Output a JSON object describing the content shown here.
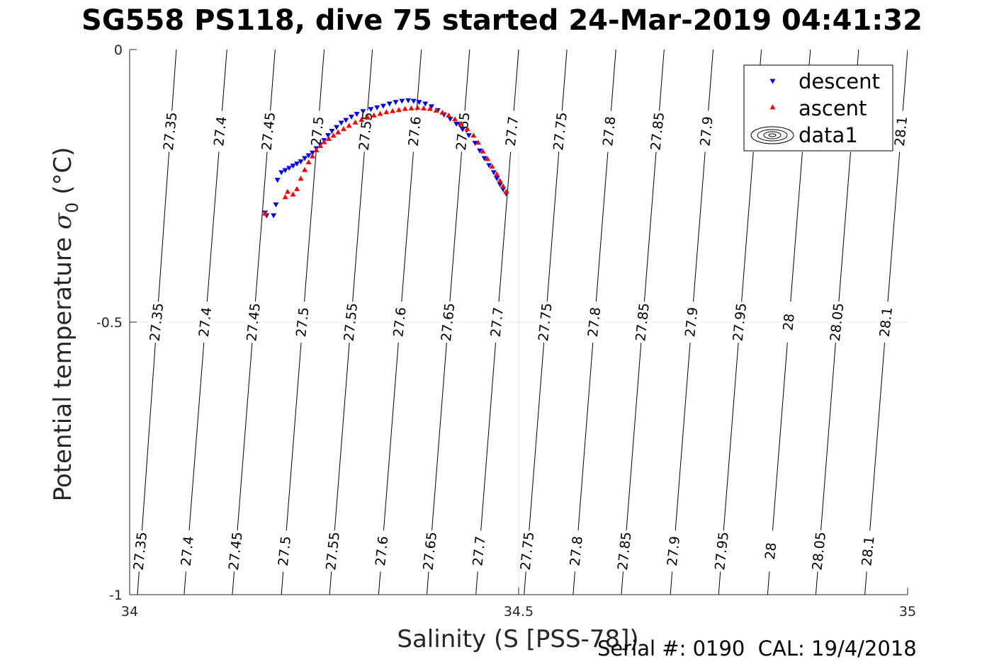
{
  "title": "SG558 PS118, dive 75 started 24-Mar-2019 04:41:32",
  "footer": "Serial #: 0190  CAL: 19/4/2018",
  "chart_data": {
    "type": "scatter",
    "title": "SG558 PS118, dive 75 started 24-Mar-2019 04:41:32",
    "xlabel": "Salinity (S [PSS-78])",
    "ylabel_main": "Potential temperature ",
    "ylabel_sigma": "σ",
    "ylabel_sub": "0",
    "ylabel_unit": " (°C)",
    "xlim": [
      34,
      35
    ],
    "ylim": [
      -1,
      0
    ],
    "x_ticks": [
      "34",
      "34.5",
      "35"
    ],
    "y_ticks": [
      "0",
      "-0.5",
      "-1"
    ],
    "grid": true,
    "legend_position": "top-right",
    "legend": [
      {
        "label": "descent",
        "marker": "triangle-down",
        "color": "#0000ff"
      },
      {
        "label": "ascent",
        "marker": "triangle-up",
        "color": "#ff0000"
      },
      {
        "label": "data1",
        "marker": "contour",
        "color": "#000000"
      }
    ],
    "contours": [
      {
        "value": 27.35,
        "label": "27.35",
        "s_at_0": 34.06,
        "s_at_m1": 34.01
      },
      {
        "value": 27.4,
        "label": "27.4",
        "s_at_0": 34.125,
        "s_at_m1": 34.07
      },
      {
        "value": 27.45,
        "label": "27.45",
        "s_at_0": 34.187,
        "s_at_m1": 34.132
      },
      {
        "value": 27.5,
        "label": "27.5",
        "s_at_0": 34.25,
        "s_at_m1": 34.195
      },
      {
        "value": 27.55,
        "label": "27.55",
        "s_at_0": 34.312,
        "s_at_m1": 34.257
      },
      {
        "value": 27.6,
        "label": "27.6",
        "s_at_0": 34.375,
        "s_at_m1": 34.32
      },
      {
        "value": 27.65,
        "label": "27.65",
        "s_at_0": 34.437,
        "s_at_m1": 34.382
      },
      {
        "value": 27.7,
        "label": "27.7",
        "s_at_0": 34.5,
        "s_at_m1": 34.445
      },
      {
        "value": 27.75,
        "label": "27.75",
        "s_at_0": 34.562,
        "s_at_m1": 34.507
      },
      {
        "value": 27.8,
        "label": "27.8",
        "s_at_0": 34.625,
        "s_at_m1": 34.57
      },
      {
        "value": 27.85,
        "label": "27.85",
        "s_at_0": 34.687,
        "s_at_m1": 34.632
      },
      {
        "value": 27.9,
        "label": "27.9",
        "s_at_0": 34.75,
        "s_at_m1": 34.695
      },
      {
        "value": 27.95,
        "label": "27.95",
        "s_at_0": 34.812,
        "s_at_m1": 34.757
      },
      {
        "value": 28,
        "label": "28",
        "s_at_0": 34.875,
        "s_at_m1": 34.82
      },
      {
        "value": 28.05,
        "label": "28.05",
        "s_at_0": 34.937,
        "s_at_m1": 34.882
      },
      {
        "value": 28.1,
        "label": "28.1",
        "s_at_0": 35.0,
        "s_at_m1": 34.945
      }
    ],
    "contour_label_levels": [
      -0.15,
      -0.5,
      -0.92
    ],
    "series": [
      {
        "name": "descent",
        "marker": "triangle-down",
        "color": "#0000ff",
        "x": [
          34.174,
          34.176,
          34.185,
          34.188,
          34.19,
          34.195,
          34.2,
          34.205,
          34.21,
          34.215,
          34.22,
          34.225,
          34.23,
          34.235,
          34.24,
          34.245,
          34.25,
          34.255,
          34.26,
          34.266,
          34.272,
          34.278,
          34.285,
          34.292,
          34.3,
          34.31,
          34.318,
          34.326,
          34.334,
          34.342,
          34.35,
          34.358,
          34.365,
          34.372,
          34.38,
          34.388,
          34.396,
          34.404,
          34.412,
          34.42,
          34.428,
          34.436,
          34.444,
          34.45,
          34.456,
          34.462,
          34.468,
          34.472,
          34.476,
          34.48,
          34.484
        ],
        "y": [
          -0.3,
          -0.305,
          -0.305,
          -0.285,
          -0.24,
          -0.226,
          -0.222,
          -0.218,
          -0.214,
          -0.21,
          -0.206,
          -0.2,
          -0.195,
          -0.19,
          -0.182,
          -0.175,
          -0.167,
          -0.158,
          -0.15,
          -0.143,
          -0.135,
          -0.13,
          -0.124,
          -0.119,
          -0.114,
          -0.11,
          -0.107,
          -0.104,
          -0.1,
          -0.097,
          -0.095,
          -0.094,
          -0.095,
          -0.097,
          -0.1,
          -0.105,
          -0.112,
          -0.12,
          -0.128,
          -0.137,
          -0.147,
          -0.158,
          -0.172,
          -0.186,
          -0.2,
          -0.213,
          -0.226,
          -0.237,
          -0.248,
          -0.257,
          -0.265
        ]
      },
      {
        "name": "ascent",
        "marker": "triangle-up",
        "color": "#ff0000",
        "x": [
          34.174,
          34.2,
          34.203,
          34.21,
          34.215,
          34.22,
          34.225,
          34.23,
          34.235,
          34.24,
          34.245,
          34.25,
          34.256,
          34.262,
          34.268,
          34.275,
          34.282,
          34.29,
          34.298,
          34.306,
          34.314,
          34.322,
          34.33,
          34.338,
          34.346,
          34.354,
          34.362,
          34.37,
          34.378,
          34.386,
          34.394,
          34.402,
          34.41,
          34.418,
          34.426,
          34.434,
          34.442,
          34.448,
          34.454,
          34.46,
          34.466,
          34.472,
          34.476,
          34.48,
          34.484
        ],
        "y": [
          -0.3,
          -0.27,
          -0.26,
          -0.265,
          -0.255,
          -0.236,
          -0.22,
          -0.206,
          -0.195,
          -0.184,
          -0.176,
          -0.169,
          -0.163,
          -0.157,
          -0.151,
          -0.145,
          -0.139,
          -0.133,
          -0.128,
          -0.124,
          -0.12,
          -0.117,
          -0.114,
          -0.112,
          -0.11,
          -0.108,
          -0.107,
          -0.106,
          -0.107,
          -0.108,
          -0.111,
          -0.115,
          -0.12,
          -0.127,
          -0.135,
          -0.145,
          -0.157,
          -0.17,
          -0.186,
          -0.2,
          -0.214,
          -0.228,
          -0.24,
          -0.25,
          -0.26
        ]
      }
    ]
  }
}
